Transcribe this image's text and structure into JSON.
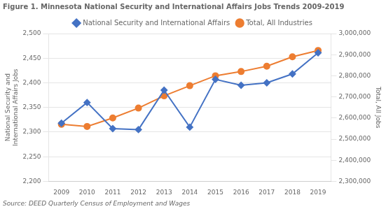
{
  "chart_data": {
    "type": "line",
    "title": "Figure 1. Minnesota National Security and International Affairs Jobs Trends 2009-2019",
    "annotations": [
      "Source: DEED Quarterly Census of Employment and Wages"
    ],
    "x": [
      2009,
      2010,
      2011,
      2012,
      2013,
      2014,
      2015,
      2016,
      2017,
      2018,
      2019
    ],
    "xlim": [
      2008.5,
      2019.5
    ],
    "xticks": [
      2009,
      2010,
      2011,
      2012,
      2013,
      2014,
      2015,
      2016,
      2017,
      2018,
      2019
    ],
    "ylabel": "National Security and\nInternational Affairs Jobs",
    "y2label": "Total, All Jobs",
    "ylim": [
      2200,
      2500
    ],
    "yticks": [
      {
        "value": 2200,
        "label": "2,200"
      },
      {
        "value": 2250,
        "label": "2,250"
      },
      {
        "value": 2300,
        "label": "2,300"
      },
      {
        "value": 2350,
        "label": "2,350"
      },
      {
        "value": 2400,
        "label": "2,400"
      },
      {
        "value": 2450,
        "label": "2,450"
      },
      {
        "value": 2500,
        "label": "2,500"
      }
    ],
    "y2lim": [
      2300000,
      3000000
    ],
    "y2ticks": [
      {
        "value": 2300000,
        "label": "2,300,000"
      },
      {
        "value": 2400000,
        "label": "2,400,000"
      },
      {
        "value": 2500000,
        "label": "2,500,000"
      },
      {
        "value": 2600000,
        "label": "2,600,000"
      },
      {
        "value": 2700000,
        "label": "2,700,000"
      },
      {
        "value": 2800000,
        "label": "2,800,000"
      },
      {
        "value": 2900000,
        "label": "2,900,000"
      },
      {
        "value": 3000000,
        "label": "3,000,000"
      }
    ],
    "grid": true,
    "legend": "top",
    "series": [
      {
        "name": "National Security and International Affairs",
        "color": "#4472C4",
        "marker": "diamond",
        "values": [
          2318,
          2360,
          2307,
          2305,
          2385,
          2310,
          2407,
          2395,
          2400,
          2418,
          2461
        ]
      },
      {
        "name": "Total, All Industries",
        "color": "#ED7D31",
        "marker": "circle",
        "axis": "y2",
        "values": [
          2570000,
          2560000,
          2600000,
          2647000,
          2705000,
          2753000,
          2800000,
          2820000,
          2845000,
          2890000,
          2920000
        ]
      }
    ]
  }
}
